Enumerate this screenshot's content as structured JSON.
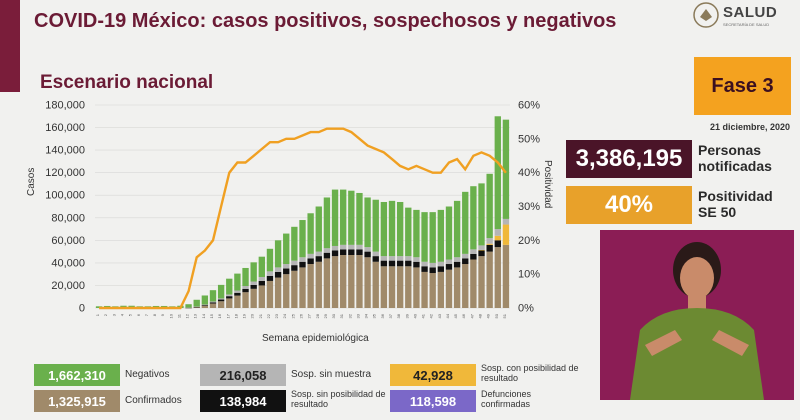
{
  "header": {
    "title": "COVID-19 México: casos positivos, sospechosos y negativos",
    "subtitle": "Escenario nacional",
    "logo_text": "SALUD",
    "logo_sub": "SECRETARÍA DE SALUD"
  },
  "phase": {
    "label": "Fase 3",
    "date": "21 diciembre, 2020"
  },
  "stats": {
    "personas_value": "3,386,195",
    "personas_label_1": "Personas",
    "personas_label_2": "notificadas",
    "positividad_value": "40%",
    "positividad_label_1": "Positividad",
    "positividad_label_2": "SE 50"
  },
  "legend": [
    {
      "value": "1,662,310",
      "label": "Negativos",
      "color": "#6ab04c",
      "text_color": "#ffffff"
    },
    {
      "value": "216,058",
      "label": "Sosp. sin muestra",
      "color": "#b5b5b5",
      "text_color": "#222222"
    },
    {
      "value": "42,928",
      "label": "Sosp. con posibilidad de resultado",
      "color": "#f0b83a",
      "text_color": "#222222"
    },
    {
      "value": "1,325,915",
      "label": "Confirmados",
      "color": "#a08a6a",
      "text_color": "#ffffff"
    },
    {
      "value": "138,984",
      "label": "Sosp. sin posibilidad de resultado",
      "color": "#111111",
      "text_color": "#ffffff"
    },
    {
      "value": "118,598",
      "label": "Defunciones confirmadas",
      "color": "#7b68c8",
      "text_color": "#ffffff"
    }
  ],
  "chart_data": {
    "type": "bar",
    "title": "Escenario nacional",
    "xlabel": "Semana epidemiológica",
    "ylabel": "Casos",
    "y2label": "Positividad",
    "ylim": [
      0,
      180000
    ],
    "y2lim": [
      0,
      60
    ],
    "yticks": [
      "0",
      "20,000",
      "40,000",
      "60,000",
      "80,000",
      "100,000",
      "120,000",
      "140,000",
      "160,000",
      "180,000"
    ],
    "y2ticks": [
      "0%",
      "10%",
      "20%",
      "30%",
      "40%",
      "50%",
      "60%"
    ],
    "categories": [
      "1",
      "2",
      "3",
      "4",
      "5",
      "6",
      "7",
      "8",
      "9",
      "10",
      "11",
      "12",
      "13",
      "14",
      "15",
      "16",
      "17",
      "18",
      "19",
      "20",
      "21",
      "22",
      "23",
      "24",
      "25",
      "26",
      "27",
      "28",
      "29",
      "30",
      "31",
      "32",
      "33",
      "34",
      "35",
      "36",
      "37",
      "38",
      "39",
      "40",
      "41",
      "42",
      "43",
      "44",
      "45",
      "46",
      "47",
      "48",
      "49",
      "50",
      "51"
    ],
    "series": [
      {
        "name": "Confirmados",
        "color": "#a08a6a",
        "values": [
          0,
          0,
          0,
          0,
          0,
          0,
          0,
          0,
          0,
          0,
          0,
          200,
          800,
          2000,
          4000,
          6000,
          8500,
          11000,
          14000,
          17000,
          20000,
          24000,
          27000,
          30000,
          33000,
          36000,
          39000,
          41000,
          44000,
          46000,
          47000,
          47000,
          47000,
          45000,
          41000,
          37000,
          37000,
          37000,
          37000,
          36000,
          32000,
          31000,
          32000,
          34000,
          36000,
          39000,
          43000,
          46000,
          50000,
          54000,
          56000
        ]
      },
      {
        "name": "Sosp. sin posibilidad de resultado",
        "color": "#111111",
        "values": [
          0,
          0,
          0,
          0,
          0,
          0,
          0,
          0,
          0,
          0,
          0,
          50,
          200,
          600,
          1000,
          1500,
          2000,
          2500,
          3000,
          3500,
          4000,
          4500,
          5000,
          5000,
          5000,
          5000,
          5000,
          5000,
          5000,
          5000,
          5000,
          5000,
          5000,
          5000,
          5000,
          5000,
          5000,
          5000,
          5000,
          5000,
          5000,
          5000,
          5000,
          5000,
          5000,
          5000,
          5000,
          5000,
          6000,
          6000,
          0
        ]
      },
      {
        "name": "Sosp. con posibilidad de resultado",
        "color": "#f0b83a",
        "values": [
          0,
          0,
          0,
          0,
          0,
          0,
          0,
          0,
          0,
          0,
          0,
          0,
          0,
          0,
          0,
          0,
          0,
          0,
          0,
          0,
          0,
          0,
          0,
          0,
          0,
          0,
          0,
          0,
          0,
          0,
          0,
          0,
          0,
          0,
          0,
          0,
          0,
          0,
          0,
          0,
          0,
          0,
          0,
          0,
          0,
          0,
          0,
          500,
          1000,
          4000,
          18000
        ]
      },
      {
        "name": "Sosp. sin muestra",
        "color": "#b5b5b5",
        "values": [
          0,
          0,
          0,
          0,
          0,
          0,
          0,
          0,
          0,
          0,
          0,
          100,
          300,
          500,
          800,
          1000,
          1500,
          2000,
          2500,
          3000,
          3500,
          4000,
          4000,
          4000,
          4000,
          4000,
          4000,
          4000,
          4000,
          4000,
          4000,
          4000,
          4000,
          4000,
          4000,
          4000,
          4000,
          4000,
          4000,
          4000,
          4000,
          4000,
          4000,
          4000,
          4000,
          4000,
          4000,
          4000,
          5000,
          6000,
          5000
        ]
      },
      {
        "name": "Negativos",
        "color": "#6ab04c",
        "values": [
          1500,
          1800,
          1500,
          2000,
          2000,
          1500,
          1500,
          1800,
          1800,
          1500,
          2000,
          3000,
          6000,
          8000,
          10000,
          12000,
          14000,
          15000,
          16000,
          17000,
          18000,
          20000,
          24000,
          27000,
          30000,
          33000,
          36000,
          40000,
          45000,
          50000,
          49000,
          48000,
          46000,
          44000,
          46000,
          48000,
          49000,
          48000,
          43000,
          42000,
          44000,
          45000,
          46000,
          47000,
          50000,
          55000,
          56000,
          55000,
          57000,
          100000,
          88000
        ]
      }
    ],
    "positividad": {
      "name": "Positividad",
      "color": "#f0a022",
      "values": [
        0,
        0,
        0,
        0,
        0,
        0,
        0,
        0,
        0,
        0,
        0,
        5,
        15,
        17,
        20,
        30,
        40,
        43,
        43,
        45,
        47,
        49,
        49,
        50,
        50,
        51,
        52,
        52,
        53,
        53,
        53,
        52,
        50,
        48,
        47,
        46,
        44,
        42,
        41,
        42,
        41,
        40,
        40,
        43,
        44,
        41,
        45,
        46,
        45,
        43,
        40
      ]
    }
  }
}
